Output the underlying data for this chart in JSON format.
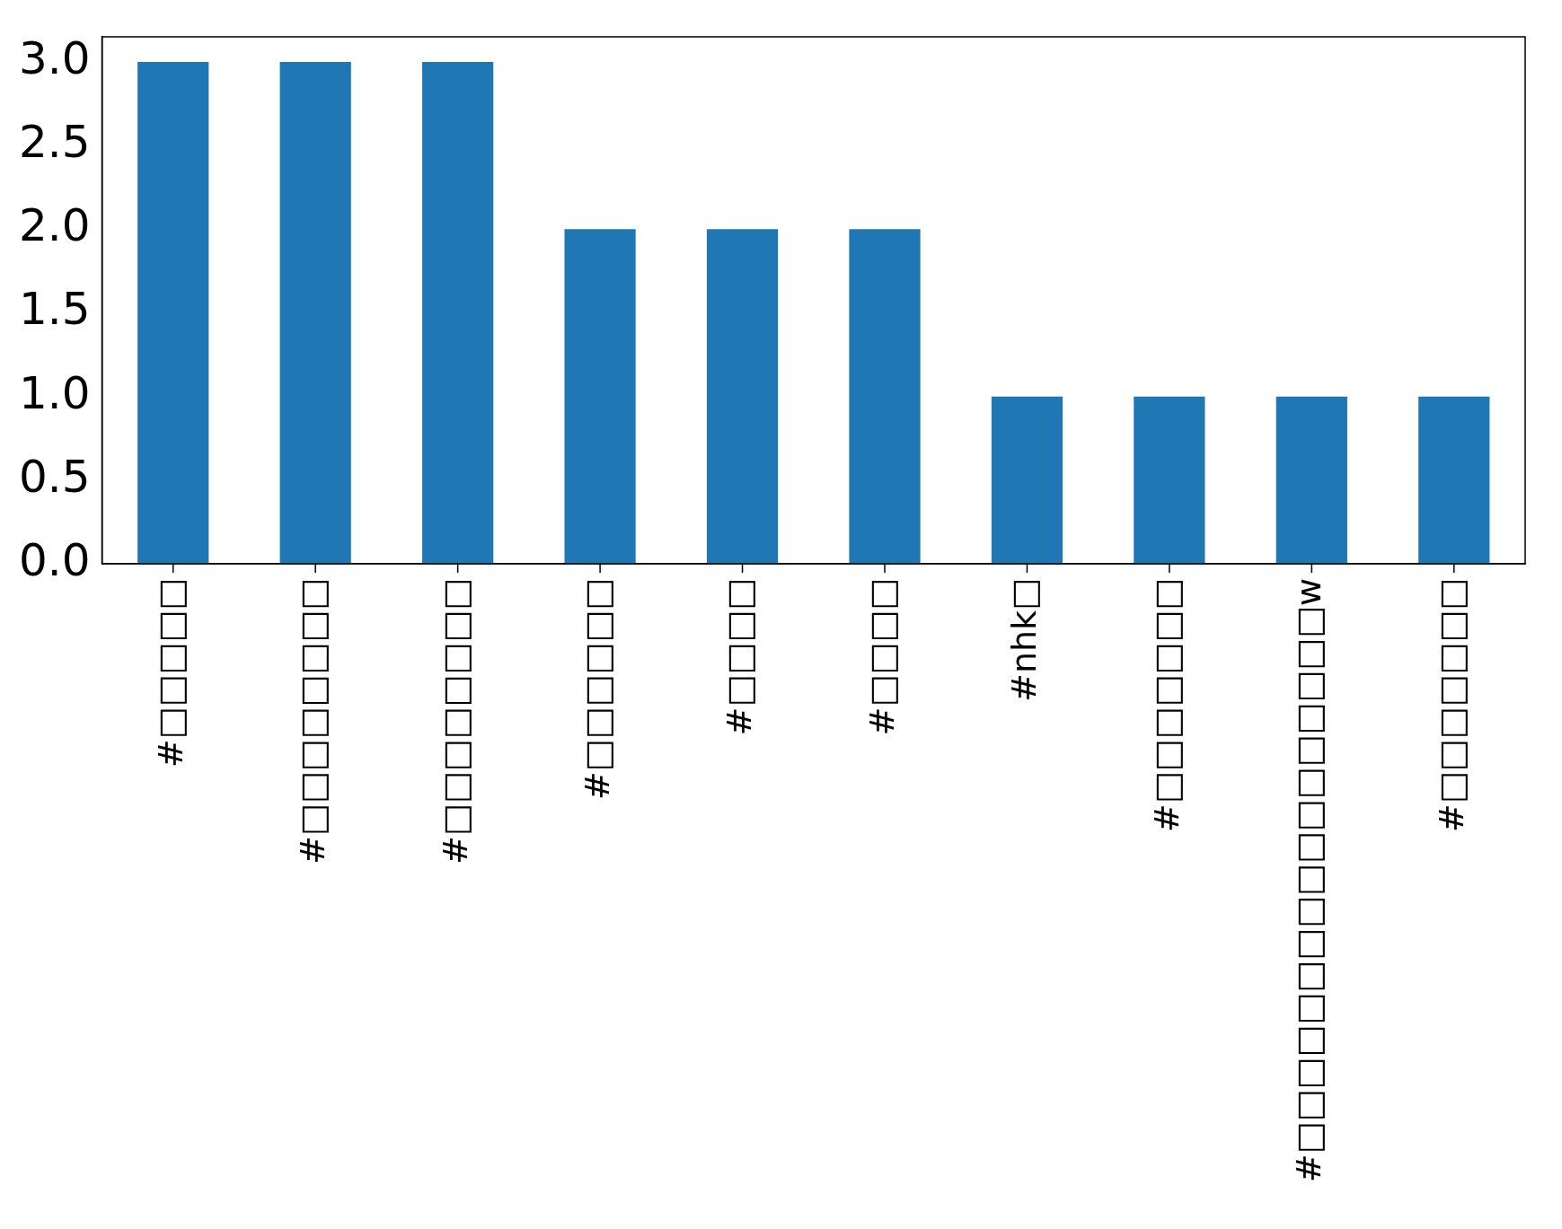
{
  "chart_data": {
    "type": "bar",
    "categories": [
      "#□□□□□",
      "#□□□□□□□□",
      "#□□□□□□□□",
      "#□□□□□□",
      "#□□□□",
      "#□□□□",
      "#nhk□",
      "#□□□□□□□",
      "#□□□□□□□□□□□□□□□□□w",
      "#□□□□□□□"
    ],
    "values": [
      3,
      3,
      3,
      2,
      2,
      2,
      1,
      1,
      1,
      1
    ],
    "color": "#1f77b4",
    "ylim": [
      0,
      3.15
    ],
    "yticks": [
      {
        "value": 0,
        "label": "0.0"
      },
      {
        "value": 0.5,
        "label": "0.5"
      },
      {
        "value": 1,
        "label": "1.0"
      },
      {
        "value": 1.5,
        "label": "1.5"
      },
      {
        "value": 2,
        "label": "2.0"
      },
      {
        "value": 2.5,
        "label": "2.5"
      },
      {
        "value": 3,
        "label": "3.0"
      }
    ],
    "grid": false
  }
}
